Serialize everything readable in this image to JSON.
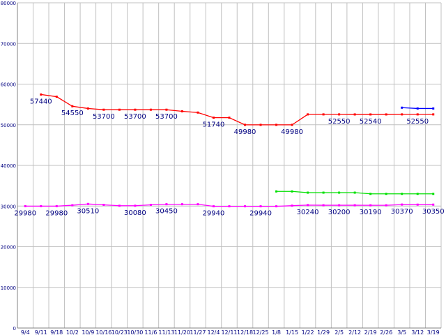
{
  "chart_data": {
    "type": "line",
    "ylim": [
      0,
      80000
    ],
    "yticks": [
      0,
      10000,
      20000,
      30000,
      40000,
      50000,
      60000,
      70000,
      80000
    ],
    "grid": true,
    "legend": "none",
    "categories": [
      "9/4",
      "9/11",
      "9/18",
      "10/2",
      "10/9",
      "10/16",
      "10/23",
      "10/30",
      "11/6",
      "11/13",
      "11/20",
      "11/27",
      "12/4",
      "12/11",
      "12/18",
      "12/25",
      "1/8",
      "1/15",
      "1/22",
      "1/29",
      "2/5",
      "2/12",
      "2/19",
      "2/26",
      "3/5",
      "3/12",
      "3/19"
    ],
    "category_labels": [
      "9/4",
      "9/11",
      "9/18",
      "10/2",
      "10/9",
      "10/16",
      "10/23",
      "10/30",
      "11/6",
      "11/13",
      "11/20",
      "11/27",
      "12/4",
      "12/11",
      "12/18",
      "12/25",
      "1/8",
      "1/15",
      "1/22",
      "1/29",
      "2/5",
      "2/12",
      "2/19",
      "2/26",
      "3/5",
      "3/12",
      "3/19"
    ],
    "series": [
      {
        "color": "#ff0000",
        "values": [
          null,
          57440,
          56900,
          54550,
          54000,
          53700,
          53700,
          53700,
          53700,
          53700,
          53300,
          53000,
          51740,
          51740,
          49980,
          49980,
          49980,
          49980,
          52550,
          52550,
          52550,
          52540,
          52540,
          52540,
          52550,
          52550,
          52550
        ]
      },
      {
        "color": "#0000ff",
        "values": [
          null,
          null,
          null,
          null,
          null,
          null,
          null,
          null,
          null,
          null,
          null,
          null,
          null,
          null,
          null,
          null,
          null,
          null,
          null,
          null,
          null,
          null,
          null,
          null,
          54200,
          54000,
          54000
        ]
      },
      {
        "color": "#00e000",
        "values": [
          null,
          null,
          null,
          null,
          null,
          null,
          null,
          null,
          null,
          null,
          null,
          null,
          null,
          null,
          null,
          null,
          33600,
          33600,
          33300,
          33300,
          33300,
          33300,
          33000,
          33000,
          33000,
          33000,
          33000
        ]
      },
      {
        "color": "#ff00ff",
        "values": [
          29980,
          29980,
          29980,
          30200,
          30510,
          30300,
          30080,
          30080,
          30300,
          30450,
          30450,
          30450,
          29940,
          29940,
          29940,
          29940,
          29940,
          30100,
          30240,
          30200,
          30200,
          30200,
          30190,
          30190,
          30370,
          30350,
          30350
        ]
      }
    ],
    "data_labels": [
      {
        "series": 0,
        "index": 1,
        "text": "57440"
      },
      {
        "series": 0,
        "index": 3,
        "text": "54550"
      },
      {
        "series": 0,
        "index": 5,
        "text": "53700"
      },
      {
        "series": 0,
        "index": 7,
        "text": "53700"
      },
      {
        "series": 0,
        "index": 9,
        "text": "53700"
      },
      {
        "series": 0,
        "index": 12,
        "text": "51740"
      },
      {
        "series": 0,
        "index": 14,
        "text": "49980"
      },
      {
        "series": 0,
        "index": 17,
        "text": "49980"
      },
      {
        "series": 0,
        "index": 20,
        "text": "52550"
      },
      {
        "series": 0,
        "index": 22,
        "text": "52540"
      },
      {
        "series": 0,
        "index": 25,
        "text": "52550"
      },
      {
        "series": 3,
        "index": 0,
        "text": "29980"
      },
      {
        "series": 3,
        "index": 2,
        "text": "29980"
      },
      {
        "series": 3,
        "index": 4,
        "text": "30510"
      },
      {
        "series": 3,
        "index": 7,
        "text": "30080"
      },
      {
        "series": 3,
        "index": 9,
        "text": "30450"
      },
      {
        "series": 3,
        "index": 12,
        "text": "29940"
      },
      {
        "series": 3,
        "index": 15,
        "text": "29940"
      },
      {
        "series": 3,
        "index": 18,
        "text": "30240"
      },
      {
        "series": 3,
        "index": 20,
        "text": "30200"
      },
      {
        "series": 3,
        "index": 22,
        "text": "30190"
      },
      {
        "series": 3,
        "index": 24,
        "text": "30370"
      },
      {
        "series": 3,
        "index": 26,
        "text": "30350"
      }
    ]
  }
}
